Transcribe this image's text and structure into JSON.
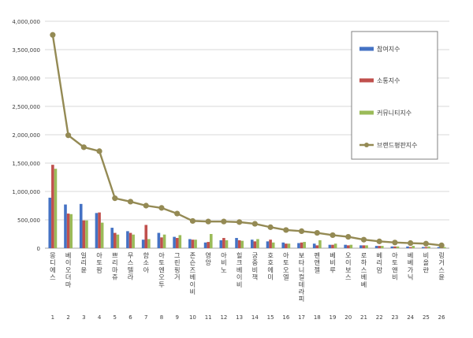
{
  "chart_data": {
    "type": "bar",
    "title": "",
    "xlabel": "",
    "ylabel": "",
    "ylim": [
      0,
      4000000
    ],
    "yticks": [
      0,
      500000,
      1000000,
      1500000,
      2000000,
      2500000,
      3000000,
      3500000,
      4000000
    ],
    "ytick_labels": [
      "0",
      "500,000",
      "1,000,000",
      "1,500,000",
      "2,000,000",
      "2,500,000",
      "3,000,000",
      "3,500,000",
      "4,000,000"
    ],
    "grid": true,
    "legend_position": "top-right",
    "ranks": [
      "1",
      "2",
      "3",
      "4",
      "5",
      "6",
      "7",
      "8",
      "9",
      "10",
      "11",
      "12",
      "13",
      "14",
      "15",
      "16",
      "17",
      "18",
      "19",
      "20",
      "21",
      "22",
      "23",
      "24",
      "25",
      "26"
    ],
    "categories": [
      "몽디에스",
      "베이오더마",
      "일리윤",
      "아토팜",
      "쁘리마쥬",
      "무스텔라",
      "함소아",
      "아토엔오투",
      "그린핑거",
      "존슨즈베이비",
      "영앙",
      "아비노",
      "힐크베이비",
      "궁중비책",
      "호호에미",
      "아토오엘",
      "보타니컬테라피",
      "펜앤젤",
      "베비루",
      "오이보스",
      "로하스베베",
      "베리맘",
      "아토앤비",
      "베베가닉",
      "비올란",
      "링거스윤"
    ],
    "series": [
      {
        "name": "참여지수",
        "color": "#4472c4",
        "values": [
          890000,
          770000,
          780000,
          620000,
          360000,
          300000,
          150000,
          270000,
          200000,
          160000,
          100000,
          140000,
          180000,
          150000,
          120000,
          100000,
          90000,
          80000,
          60000,
          60000,
          50000,
          40000,
          30000,
          30000,
          20000,
          20000
        ]
      },
      {
        "name": "소통지수",
        "color": "#c0504d",
        "values": [
          1470000,
          610000,
          490000,
          630000,
          270000,
          270000,
          410000,
          190000,
          180000,
          150000,
          110000,
          180000,
          140000,
          120000,
          150000,
          80000,
          100000,
          50000,
          60000,
          50000,
          50000,
          40000,
          30000,
          20000,
          20000,
          10000
        ]
      },
      {
        "name": "커뮤니티지수",
        "color": "#9bbb59",
        "values": [
          1400000,
          600000,
          490000,
          450000,
          240000,
          240000,
          160000,
          240000,
          230000,
          150000,
          250000,
          140000,
          130000,
          160000,
          100000,
          80000,
          110000,
          140000,
          80000,
          60000,
          50000,
          40000,
          30000,
          40000,
          30000,
          20000
        ]
      },
      {
        "name": "브랜드평판지수",
        "color": "#948a54",
        "type": "line",
        "values": [
          3760000,
          1990000,
          1780000,
          1710000,
          880000,
          820000,
          750000,
          710000,
          610000,
          480000,
          470000,
          470000,
          460000,
          430000,
          370000,
          320000,
          300000,
          270000,
          230000,
          200000,
          150000,
          120000,
          100000,
          90000,
          80000,
          50000
        ]
      }
    ]
  }
}
